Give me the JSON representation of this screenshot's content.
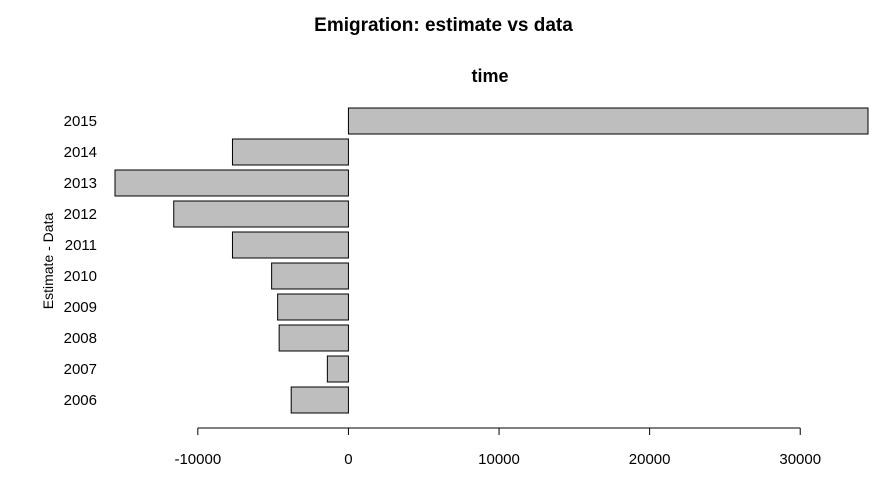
{
  "chart_data": {
    "type": "bar",
    "orientation": "horizontal",
    "title": "Emigration: estimate vs data",
    "subtitle": "time",
    "xlabel": "",
    "ylabel": "Estimate - Data",
    "categories": [
      "2006",
      "2007",
      "2008",
      "2009",
      "2010",
      "2011",
      "2012",
      "2013",
      "2014",
      "2015"
    ],
    "values": [
      -3800,
      -1400,
      -4600,
      -4700,
      -5100,
      -7700,
      -11600,
      -15500,
      -7700,
      34500
    ],
    "xlim": [
      -15500,
      34500
    ],
    "xticks": [
      -10000,
      0,
      10000,
      20000,
      30000
    ],
    "xtick_labels": [
      "-10000",
      "0",
      "10000",
      "20000",
      "30000"
    ],
    "grid": false,
    "bar_color": "#bebebe",
    "edge_color": "#000000"
  }
}
